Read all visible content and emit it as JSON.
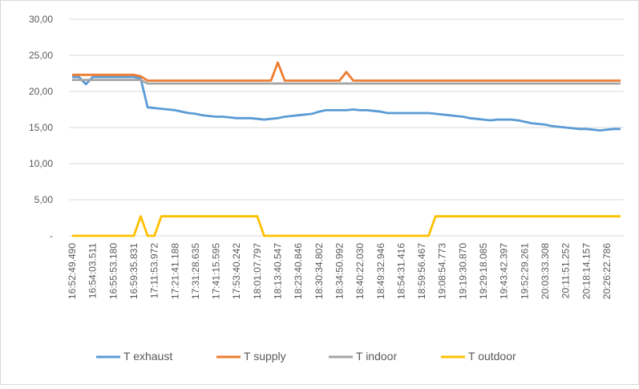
{
  "chart_data": {
    "type": "line",
    "categories": [
      "16:52:49.490",
      null,
      null,
      "16:54:03.511",
      null,
      null,
      "16:55:53.180",
      null,
      null,
      "16:59:35.831",
      null,
      null,
      "17:11:53.972",
      null,
      null,
      "17:21:41.188",
      null,
      null,
      "17:31:28.635",
      null,
      null,
      "17:41:15.595",
      null,
      null,
      "17:53:40.242",
      null,
      null,
      "18:01:07.797",
      null,
      null,
      "18:13:40.547",
      null,
      null,
      "18:23:40.846",
      null,
      null,
      "18:30:34.802",
      null,
      null,
      "18:34:50.992",
      null,
      null,
      "18:40:22.030",
      null,
      null,
      "18:49:32.946",
      null,
      null,
      "18:54:31.416",
      null,
      null,
      "18:59:56.467",
      null,
      null,
      "19:08:54.773",
      null,
      null,
      "19:19:30.870",
      null,
      null,
      "19:29:18.085",
      null,
      null,
      "19:43:42.397",
      null,
      null,
      "19:52:29.261",
      null,
      null,
      "20:03:33.308",
      null,
      null,
      "20:11:51.252",
      null,
      null,
      "20:18:14.157",
      null,
      null,
      "20:26:22.786",
      null,
      null
    ],
    "series": [
      {
        "name": "T exhaust",
        "color": "#5b9bd5",
        "values": [
          22,
          22,
          21,
          22,
          22,
          22,
          22,
          22,
          22,
          22,
          21.8,
          17.8,
          17.7,
          17.6,
          17.5,
          17.4,
          17.2,
          17,
          16.9,
          16.7,
          16.6,
          16.5,
          16.5,
          16.4,
          16.3,
          16.3,
          16.3,
          16.2,
          16.1,
          16.2,
          16.3,
          16.5,
          16.6,
          16.7,
          16.8,
          16.9,
          17.2,
          17.4,
          17.4,
          17.4,
          17.4,
          17.5,
          17.4,
          17.4,
          17.3,
          17.2,
          17,
          17,
          17,
          17,
          17,
          17,
          17,
          16.9,
          16.8,
          16.7,
          16.6,
          16.5,
          16.3,
          16.2,
          16.1,
          16,
          16.1,
          16.1,
          16.1,
          16,
          15.8,
          15.6,
          15.5,
          15.4,
          15.2,
          15.1,
          15,
          14.9,
          14.8,
          14.8,
          14.7,
          14.6,
          14.7,
          14.8,
          14.8
        ]
      },
      {
        "name": "T supply",
        "color": "#ed7d31",
        "values": [
          22.3,
          22.3,
          22.3,
          22.3,
          22.3,
          22.3,
          22.3,
          22.3,
          22.3,
          22.3,
          22.1,
          21.5,
          21.5,
          21.5,
          21.5,
          21.5,
          21.5,
          21.5,
          21.5,
          21.5,
          21.5,
          21.5,
          21.5,
          21.5,
          21.5,
          21.5,
          21.5,
          21.5,
          21.5,
          21.5,
          24,
          21.5,
          21.5,
          21.5,
          21.5,
          21.5,
          21.5,
          21.5,
          21.5,
          21.5,
          22.7,
          21.5,
          21.5,
          21.5,
          21.5,
          21.5,
          21.5,
          21.5,
          21.5,
          21.5,
          21.5,
          21.5,
          21.5,
          21.5,
          21.5,
          21.5,
          21.5,
          21.5,
          21.5,
          21.5,
          21.5,
          21.5,
          21.5,
          21.5,
          21.5,
          21.5,
          21.5,
          21.5,
          21.5,
          21.5,
          21.5,
          21.5,
          21.5,
          21.5,
          21.5,
          21.5,
          21.5,
          21.5,
          21.5,
          21.5,
          21.5
        ]
      },
      {
        "name": "T indoor",
        "color": "#a5a5a5",
        "values": [
          21.6,
          21.6,
          21.6,
          21.6,
          21.6,
          21.6,
          21.6,
          21.6,
          21.6,
          21.6,
          21.6,
          21.1,
          21.1,
          21.1,
          21.1,
          21.1,
          21.1,
          21.1,
          21.1,
          21.1,
          21.1,
          21.1,
          21.1,
          21.1,
          21.1,
          21.1,
          21.1,
          21.1,
          21.1,
          21.1,
          21.1,
          21.1,
          21.1,
          21.1,
          21.1,
          21.1,
          21.1,
          21.1,
          21.1,
          21.1,
          21.1,
          21.1,
          21.1,
          21.1,
          21.1,
          21.1,
          21.1,
          21.1,
          21.1,
          21.1,
          21.1,
          21.1,
          21.1,
          21.1,
          21.1,
          21.1,
          21.1,
          21.1,
          21.1,
          21.1,
          21.1,
          21.1,
          21.1,
          21.1,
          21.1,
          21.1,
          21.1,
          21.1,
          21.1,
          21.1,
          21.1,
          21.1,
          21.1,
          21.1,
          21.1,
          21.1,
          21.1,
          21.1,
          21.1,
          21.1,
          21.1
        ]
      },
      {
        "name": "T outdoor",
        "color": "#ffc000",
        "values": [
          0,
          0,
          0,
          0,
          0,
          0,
          0,
          0,
          0,
          0,
          2.7,
          0,
          0,
          2.7,
          2.7,
          2.7,
          2.7,
          2.7,
          2.7,
          2.7,
          2.7,
          2.7,
          2.7,
          2.7,
          2.7,
          2.7,
          2.7,
          2.7,
          0,
          0,
          0,
          0,
          0,
          0,
          0,
          0,
          0,
          0,
          0,
          0,
          0,
          0,
          0,
          0,
          0,
          0,
          0,
          0,
          0,
          0,
          0,
          0,
          0,
          2.7,
          2.7,
          2.7,
          2.7,
          2.7,
          2.7,
          2.7,
          2.7,
          2.7,
          2.7,
          2.7,
          2.7,
          2.7,
          2.7,
          2.7,
          2.7,
          2.7,
          2.7,
          2.7,
          2.7,
          2.7,
          2.7,
          2.7,
          2.7,
          2.7,
          2.7,
          2.7,
          2.7
        ]
      }
    ],
    "ylim": [
      0,
      30
    ],
    "yticks": [
      {
        "value": 0,
        "label": "-"
      },
      {
        "value": 5,
        "label": "5,00"
      },
      {
        "value": 10,
        "label": "10,00"
      },
      {
        "value": 15,
        "label": "15,00"
      },
      {
        "value": 20,
        "label": "20,00"
      },
      {
        "value": 25,
        "label": "25,00"
      },
      {
        "value": 30,
        "label": "30,00"
      }
    ],
    "grid": true,
    "legend": "bottom"
  }
}
